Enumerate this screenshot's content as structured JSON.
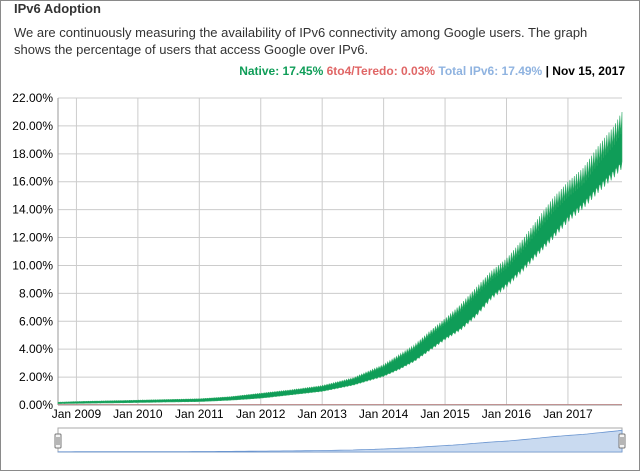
{
  "header": {
    "title": "IPv6 Adoption",
    "description": "We are continuously measuring the availability of IPv6 connectivity among Google users. The graph shows the percentage of users that access Google over IPv6."
  },
  "legend": {
    "native_label": "Native: 17.45%",
    "teredo_label": "6to4/Teredo: 0.03%",
    "total_label": "Total IPv6: 17.49%",
    "separator": "|",
    "date_label": "Nov 15, 2017"
  },
  "colors": {
    "native": "#0f9d58",
    "native_light": "#2eaa66",
    "teredo": "#e06666",
    "total": "#8fb3e0",
    "grid": "#cccccc",
    "navigator_fill": "#c9daf0",
    "navigator_line": "#6a95d0"
  },
  "chart_data": {
    "type": "area",
    "title": "",
    "xlabel": "",
    "ylabel": "",
    "ylim": [
      0,
      22
    ],
    "y_ticks": [
      "0.00%",
      "2.00%",
      "4.00%",
      "6.00%",
      "8.00%",
      "10.00%",
      "12.00%",
      "14.00%",
      "16.00%",
      "18.00%",
      "20.00%",
      "22.00%"
    ],
    "x_ticks": [
      "Jan 2009",
      "Jan 2010",
      "Jan 2011",
      "Jan 2012",
      "Jan 2013",
      "Jan 2014",
      "Jan 2015",
      "Jan 2016",
      "Jan 2017"
    ],
    "x_range": [
      2008.7,
      2017.88
    ],
    "grid": true,
    "series": [
      {
        "name": "Native",
        "x": [
          2008.7,
          2009.0,
          2009.5,
          2010.0,
          2010.5,
          2011.0,
          2011.5,
          2012.0,
          2012.5,
          2013.0,
          2013.5,
          2014.0,
          2014.25,
          2014.5,
          2014.75,
          2015.0,
          2015.25,
          2015.5,
          2015.75,
          2016.0,
          2016.25,
          2016.5,
          2016.75,
          2017.0,
          2017.25,
          2017.5,
          2017.75,
          2017.88
        ],
        "low": [
          0.1,
          0.12,
          0.15,
          0.18,
          0.22,
          0.25,
          0.35,
          0.5,
          0.75,
          1.0,
          1.45,
          2.1,
          2.6,
          3.2,
          4.0,
          4.8,
          5.5,
          6.5,
          7.8,
          8.7,
          9.8,
          11.0,
          12.2,
          13.5,
          14.5,
          15.7,
          16.8,
          17.45
        ],
        "high": [
          0.2,
          0.25,
          0.3,
          0.35,
          0.4,
          0.45,
          0.6,
          0.85,
          1.1,
          1.4,
          1.95,
          2.9,
          3.6,
          4.3,
          5.3,
          6.2,
          7.2,
          8.4,
          9.6,
          10.5,
          11.8,
          13.3,
          14.8,
          16.0,
          17.0,
          18.6,
          20.0,
          21.0
        ]
      },
      {
        "name": "6to4/Teredo",
        "x": [
          2008.7,
          2017.88
        ],
        "values": [
          0.03,
          0.03
        ]
      }
    ]
  }
}
